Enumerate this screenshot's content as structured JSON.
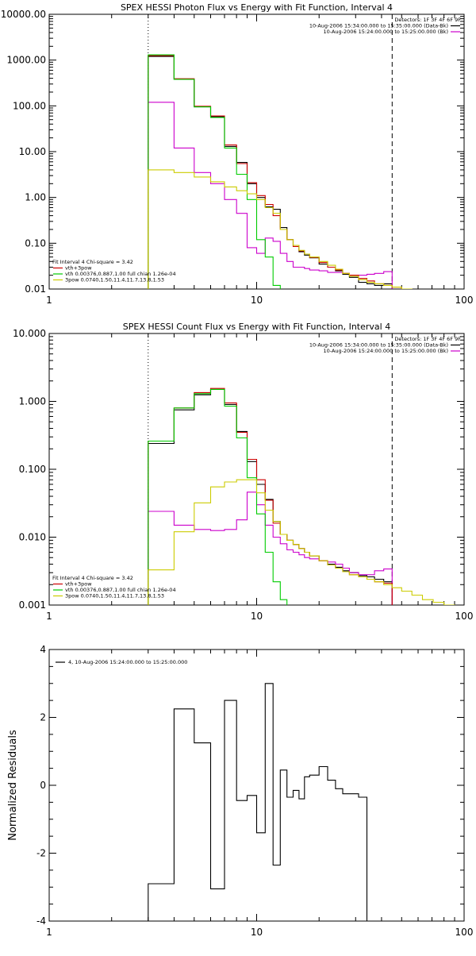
{
  "chart_data": [
    {
      "type": "line",
      "title": "SPEX HESSI Photon Flux vs Energy with Fit Function, Interval 4",
      "xscale": "log",
      "yscale": "log",
      "xlim": [
        1,
        100
      ],
      "ylim": [
        0.01,
        10000
      ],
      "x_ticks": [
        "1",
        "10",
        "100"
      ],
      "y_ticks": [
        "0.01",
        "0.10",
        "1.00",
        "10.00",
        "100.00",
        "1000.00",
        "10000.00"
      ],
      "legend_top_right": [
        {
          "label": "Detectors: 1F 3F 4F 6F 9F",
          "color": ""
        },
        {
          "label": "10-Aug-2006 15:34:00.000 to 15:35:00.000 (Data-Bk)",
          "color": "#000000"
        },
        {
          "label": "10-Aug-2006 15:24:00.000 to 15:25:00.000 (Bk)",
          "color": "#cc00cc"
        }
      ],
      "legend_bottom_left": [
        {
          "label": "Fit Interval 4   Chi-square = 3.42",
          "color": ""
        },
        {
          "label": "vth+3pow",
          "color": "#cc0000"
        },
        {
          "label": "vth 0.00376,0.887,1.00  full chian 1.26e-04",
          "color": "#00cc00"
        },
        {
          "label": "3pow 0.0740,1.50,11.4,11.7,13.8,1.53",
          "color": "#cccc00"
        }
      ],
      "vlines": [
        {
          "x": 3.0,
          "style": "dotted"
        },
        {
          "x": 45,
          "style": "dashed"
        }
      ],
      "edges": [
        3,
        4,
        5,
        6,
        7,
        8,
        9,
        10,
        11,
        12,
        13,
        14,
        15,
        16,
        17,
        18,
        20,
        22,
        24,
        26,
        28,
        31,
        34,
        37,
        41,
        45,
        50,
        56,
        63,
        71
      ],
      "series": [
        {
          "name": "Data-Bk",
          "color": "#000000",
          "values": [
            1200,
            380,
            95,
            58,
            13,
            5.8,
            2.0,
            1.0,
            0.62,
            0.55,
            0.22,
            0.12,
            0.09,
            0.065,
            0.055,
            0.048,
            0.035,
            0.03,
            0.025,
            0.021,
            0.018,
            0.014,
            0.013,
            0.012,
            0.013,
            null,
            null,
            null,
            null
          ]
        },
        {
          "name": "Bk",
          "color": "#cc00cc",
          "values": [
            120,
            12,
            3.5,
            2.0,
            0.9,
            0.45,
            0.08,
            0.06,
            0.13,
            0.11,
            0.06,
            0.04,
            0.03,
            0.03,
            0.028,
            0.026,
            0.025,
            0.023,
            0.023,
            0.022,
            0.02,
            0.02,
            0.021,
            0.022,
            0.024,
            null,
            null,
            null,
            null
          ]
        },
        {
          "name": "vth+3pow",
          "color": "#cc0000",
          "values": [
            1250,
            390,
            98,
            60,
            14,
            5.5,
            2.1,
            1.1,
            0.7,
            0.4,
            0.2,
            0.12,
            0.085,
            0.068,
            0.058,
            0.049,
            0.038,
            0.03,
            0.026,
            0.022,
            0.02,
            0.017,
            0.015,
            0.013,
            0.012,
            0.011,
            0.01,
            null,
            null
          ]
        },
        {
          "name": "vth",
          "color": "#00cc00",
          "values": [
            1300,
            380,
            95,
            56,
            12,
            3.2,
            0.9,
            0.12,
            0.05,
            0.012,
            0.008,
            null,
            null,
            null,
            null,
            null,
            null,
            null,
            null,
            null,
            null,
            null,
            null,
            null,
            null,
            null,
            null,
            null,
            null
          ]
        },
        {
          "name": "3pow",
          "color": "#cccc00",
          "values": [
            4.0,
            3.5,
            2.8,
            2.2,
            1.7,
            1.4,
            1.2,
            0.9,
            0.6,
            0.45,
            0.2,
            0.12,
            0.09,
            0.07,
            0.058,
            0.05,
            0.04,
            0.033,
            0.027,
            0.022,
            0.019,
            0.016,
            0.014,
            0.013,
            0.012,
            0.011,
            0.01,
            0.009,
            0.008
          ]
        }
      ]
    },
    {
      "type": "line",
      "title": "SPEX HESSI Count Flux vs Energy with Fit Function, Interval 4",
      "xscale": "log",
      "yscale": "log",
      "xlim": [
        1,
        100
      ],
      "ylim": [
        0.001,
        10
      ],
      "x_ticks": [
        "1",
        "10",
        "100"
      ],
      "y_ticks": [
        "0.001",
        "0.010",
        "0.100",
        "1.000",
        "10.000"
      ],
      "legend_top_right": [
        {
          "label": "Detectors: 1F 3F 4F 6F 9F",
          "color": ""
        },
        {
          "label": "10-Aug-2006 15:34:00.000 to 15:35:00.000 (Data-Bk)",
          "color": "#000000"
        },
        {
          "label": "10-Aug-2006 15:24:00.000 to 15:25:00.000 (Bk)",
          "color": "#cc00cc"
        }
      ],
      "legend_bottom_left": [
        {
          "label": "Fit Interval 4   Chi-square = 3.42",
          "color": ""
        },
        {
          "label": "vth+3pow",
          "color": "#cc0000"
        },
        {
          "label": "vth 0.00376,0.887,1.00  full chian 1.26e-04",
          "color": "#00cc00"
        },
        {
          "label": "3pow 0.0740,1.50,11.4,11.7,13.8,1.53",
          "color": "#cccc00"
        }
      ],
      "vlines": [
        {
          "x": 3.0,
          "style": "dotted"
        },
        {
          "x": 45,
          "style": "dashed"
        }
      ],
      "edges": [
        3,
        4,
        5,
        6,
        7,
        8,
        9,
        10,
        11,
        12,
        13,
        14,
        15,
        16,
        17,
        18,
        20,
        22,
        24,
        26,
        28,
        31,
        34,
        37,
        41,
        45,
        50,
        56,
        63,
        71,
        80,
        90
      ],
      "series": [
        {
          "name": "Data-Bk",
          "color": "#000000",
          "values": [
            0.24,
            0.75,
            1.25,
            1.5,
            0.9,
            0.36,
            0.13,
            0.06,
            0.036,
            0.017,
            0.011,
            0.009,
            0.0078,
            0.0068,
            0.006,
            0.0053,
            0.0045,
            0.004,
            0.0036,
            0.0032,
            0.003,
            0.0027,
            0.0026,
            0.0024,
            0.0022,
            null,
            null,
            null,
            null,
            null,
            null
          ]
        },
        {
          "name": "Bk",
          "color": "#cc00cc",
          "values": [
            0.024,
            0.015,
            0.013,
            0.0125,
            0.013,
            0.018,
            0.046,
            0.03,
            0.015,
            0.01,
            0.008,
            0.0065,
            0.006,
            0.0055,
            0.005,
            0.0048,
            0.0045,
            0.0043,
            0.004,
            0.0035,
            0.003,
            0.0028,
            0.0028,
            0.0032,
            0.0034,
            null,
            null,
            null,
            null,
            null,
            null
          ]
        },
        {
          "name": "vth+3pow",
          "color": "#cc0000",
          "values": [
            0.26,
            0.8,
            1.35,
            1.55,
            0.95,
            0.35,
            0.14,
            0.07,
            0.035,
            0.016,
            0.011,
            0.009,
            0.0078,
            0.0068,
            0.006,
            0.0053,
            0.0045,
            0.0039,
            0.0035,
            0.0031,
            0.0028,
            0.0026,
            0.0024,
            0.0022,
            0.0021,
            null,
            null,
            null,
            null,
            null,
            null
          ]
        },
        {
          "name": "vth",
          "color": "#00cc00",
          "values": [
            0.26,
            0.8,
            1.3,
            1.5,
            0.85,
            0.29,
            0.075,
            0.022,
            0.006,
            0.0022,
            0.0012,
            null,
            null,
            null,
            null,
            null,
            null,
            null,
            null,
            null,
            null,
            null,
            null,
            null,
            null,
            null,
            null,
            null,
            null,
            null,
            null
          ]
        },
        {
          "name": "3pow",
          "color": "#cccc00",
          "values": [
            0.0033,
            0.012,
            0.032,
            0.055,
            0.065,
            0.07,
            0.07,
            0.045,
            0.025,
            0.017,
            0.011,
            0.009,
            0.0078,
            0.0068,
            0.006,
            0.0053,
            0.0045,
            0.0039,
            0.0035,
            0.0031,
            0.0028,
            0.0026,
            0.0024,
            0.0022,
            0.002,
            0.0018,
            0.0016,
            0.0014,
            0.0012,
            0.0011,
            0.001
          ]
        }
      ]
    },
    {
      "type": "line",
      "title": "",
      "xscale": "log",
      "yscale": "linear",
      "xlim": [
        1,
        100
      ],
      "ylim": [
        -4,
        4
      ],
      "x_ticks": [
        "1",
        "10",
        "100"
      ],
      "y_ticks": [
        "-4",
        "-2",
        "0",
        "2",
        "4"
      ],
      "ylabel": "Normalized Residuals",
      "legend_top_left": [
        {
          "label": "4, 10-Aug-2006 15:24:00.000 to 15:25:00.000",
          "color": "#000000"
        }
      ],
      "edges": [
        3,
        4,
        5,
        6,
        7,
        8,
        9,
        10,
        11,
        12,
        13,
        14,
        15,
        16,
        17,
        18,
        20,
        22,
        24,
        26,
        28,
        31,
        34,
        37,
        41,
        45
      ],
      "series": [
        {
          "name": "",
          "color": "#000000",
          "values": [
            -2.9,
            2.25,
            1.25,
            -3.05,
            2.5,
            -0.45,
            -0.3,
            -1.4,
            3.0,
            -2.35,
            0.45,
            -0.35,
            -0.15,
            -0.4,
            0.25,
            0.3,
            0.55,
            0.15,
            -0.1,
            -0.25,
            -0.25,
            -0.35,
            null,
            null,
            null
          ]
        }
      ]
    }
  ]
}
